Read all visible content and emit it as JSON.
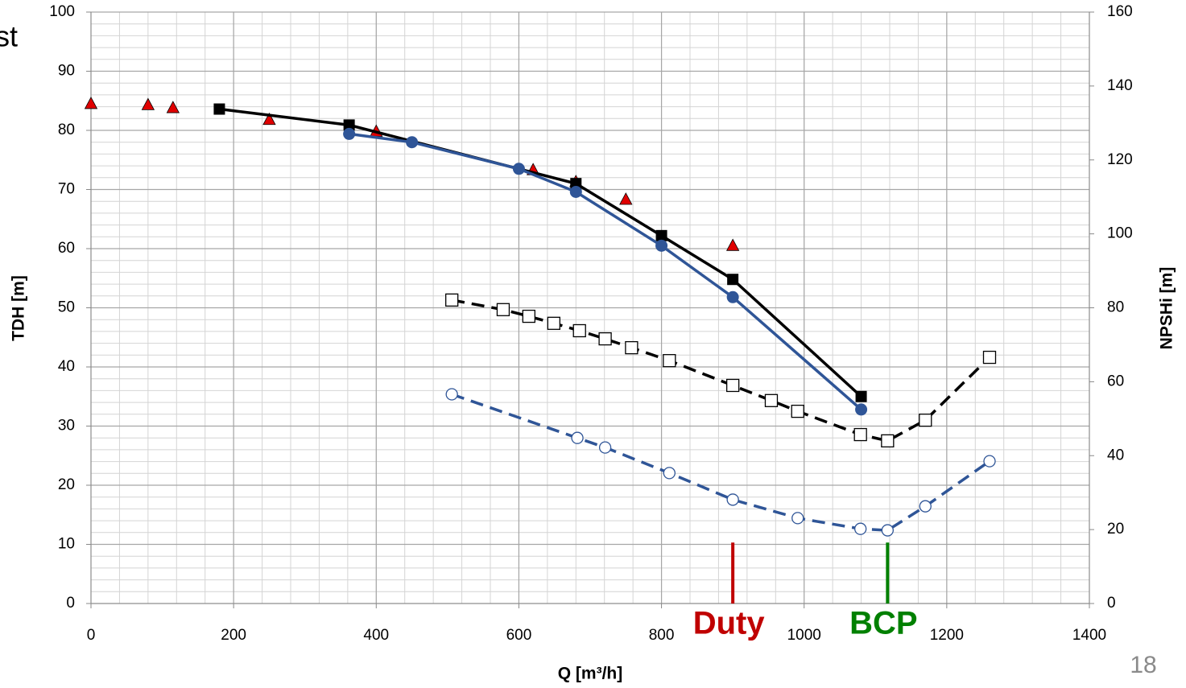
{
  "chart_data": {
    "type": "line",
    "xlabel": "Q [m³/h]",
    "ylabel": "TDH [m]",
    "y2label": "NPSHi [m]",
    "xlim": [
      0,
      1400
    ],
    "xticks": [
      0,
      200,
      400,
      600,
      800,
      1000,
      1200,
      1400
    ],
    "ylim": [
      0,
      100
    ],
    "yticks": [
      0,
      10,
      20,
      30,
      40,
      50,
      60,
      70,
      80,
      90,
      100
    ],
    "y2lim": [
      0,
      160
    ],
    "y2ticks": [
      0,
      20,
      40,
      60,
      80,
      100,
      120,
      140,
      160
    ],
    "grid": true,
    "x_minor_step": 40,
    "y_minor_step": 2,
    "series": [
      {
        "style": "scatter",
        "marker": "triangle",
        "color": "#e00000",
        "x": [
          0,
          80,
          115,
          250,
          400,
          620,
          680,
          750,
          900
        ],
        "values": [
          84.5,
          84.3,
          83.8,
          81.8,
          79.8,
          73.3,
          71.3,
          68.3,
          60.5
        ]
      },
      {
        "style": "line",
        "marker": "square",
        "color": "#000000",
        "x": [
          180,
          362,
          680,
          800,
          900,
          1080
        ],
        "values": [
          83.6,
          80.9,
          71,
          62.2,
          54.8,
          35
        ]
      },
      {
        "style": "line",
        "marker": "circle",
        "color": "#2f5597",
        "x": [
          362,
          450,
          600,
          680,
          800,
          900,
          1080
        ],
        "values": [
          79.4,
          78,
          73.5,
          69.6,
          60.5,
          51.8,
          32.8
        ]
      },
      {
        "style": "dashed",
        "marker": "square-open",
        "color": "#000000",
        "axis": "y2",
        "x": [
          506,
          578,
          614,
          649,
          685,
          721,
          758,
          811,
          900,
          954,
          991,
          1079,
          1117,
          1170,
          1260
        ],
        "values": [
          82.1,
          79.5,
          77.7,
          75.8,
          73.8,
          71.6,
          69.2,
          65.7,
          59.0,
          54.9,
          52.0,
          45.7,
          44.0,
          49.6,
          66.6
        ]
      },
      {
        "style": "dashed",
        "marker": "circle-open",
        "color": "#2f5597",
        "axis": "y2",
        "x": [
          506,
          682,
          721,
          811,
          900,
          991,
          1079,
          1117,
          1170,
          1260
        ],
        "values": [
          56.6,
          44.8,
          42.2,
          35.3,
          28.1,
          23.1,
          20.2,
          19.8,
          26.3,
          38.5
        ]
      }
    ],
    "annotations": [
      {
        "text": "Duty",
        "x": 900,
        "top": 10.3,
        "color": "#c00000"
      },
      {
        "text": "BCP",
        "x": 1117,
        "top": 10.3,
        "color": "#008000"
      }
    ],
    "page_number": "18",
    "fragments": [
      "st"
    ]
  }
}
